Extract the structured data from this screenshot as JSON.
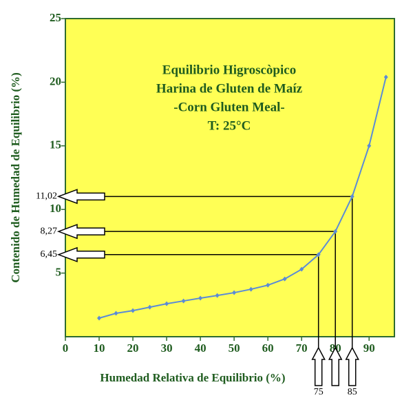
{
  "chart_data": {
    "type": "line",
    "title": [
      "Equilibrio Higroscòpico",
      "Harina de Gluten de Maíz",
      "-Corn Gluten Meal-",
      "T: 25°C"
    ],
    "x_label": "Humedad Relativa de Equilibrio (%)",
    "y_label": "Contenido de Humedad de Equilibrio (%)",
    "x": [
      10,
      15,
      20,
      25,
      30,
      35,
      40,
      45,
      50,
      55,
      60,
      65,
      70,
      75,
      80,
      85,
      90,
      95
    ],
    "series": [
      {
        "color": "#5b8bd6",
        "values": [
          1.46,
          1.84,
          2.05,
          2.32,
          2.59,
          2.81,
          3.03,
          3.24,
          3.46,
          3.73,
          4.05,
          4.54,
          5.3,
          6.45,
          8.27,
          11.02,
          15.0,
          20.4
        ]
      }
    ],
    "xlim": [
      0,
      97.5
    ],
    "ylim": [
      0,
      25
    ],
    "xticks": [
      0,
      10,
      20,
      30,
      40,
      50,
      60,
      70,
      80,
      90
    ],
    "yticks": [
      5,
      10,
      15,
      20,
      25
    ],
    "background": "#ffff55",
    "h_annotations": [
      {
        "value": 11.02,
        "label": "11,02"
      },
      {
        "value": 8.27,
        "label": "8,27"
      },
      {
        "value": 6.45,
        "label": "6,45"
      }
    ],
    "v_annotations": [
      {
        "value": 75,
        "label": "75"
      },
      {
        "value": 80
      },
      {
        "value": 85,
        "label": "85"
      }
    ]
  }
}
